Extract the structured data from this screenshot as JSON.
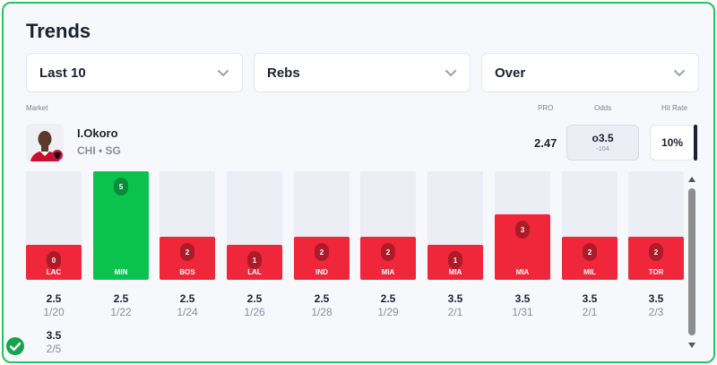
{
  "header": {
    "title": "Trends"
  },
  "filters": [
    {
      "value": "Last 10"
    },
    {
      "value": "Rebs"
    },
    {
      "value": "Over"
    }
  ],
  "columns": {
    "market": "Market",
    "pro": "PRO",
    "odds": "Odds",
    "hit_rate": "Hit Rate"
  },
  "player": {
    "name": "I.Okoro",
    "team_pos": "CHI • SG",
    "pro": "2.47",
    "odds_line": "o3.5",
    "odds_price": "-104",
    "hit_rate": "10%"
  },
  "games": [
    {
      "value": "0",
      "opp": "LAC",
      "line": "2.5",
      "date": "1/20",
      "hit": false
    },
    {
      "value": "5",
      "opp": "MIN",
      "line": "2.5",
      "date": "1/22",
      "hit": true
    },
    {
      "value": "2",
      "opp": "BOS",
      "line": "2.5",
      "date": "1/24",
      "hit": false
    },
    {
      "value": "1",
      "opp": "LAL",
      "line": "2.5",
      "date": "1/26",
      "hit": false
    },
    {
      "value": "2",
      "opp": "IND",
      "line": "2.5",
      "date": "1/28",
      "hit": false
    },
    {
      "value": "2",
      "opp": "MIA",
      "line": "2.5",
      "date": "1/29",
      "hit": false
    },
    {
      "value": "1",
      "opp": "MIA",
      "line": "3.5",
      "date": "2/1",
      "hit": false
    },
    {
      "value": "3",
      "opp": "MIA",
      "line": "3.5",
      "date": "1/31",
      "hit": false
    },
    {
      "value": "2",
      "opp": "MIL",
      "line": "3.5",
      "date": "2/1",
      "hit": false
    },
    {
      "value": "2",
      "opp": "TOR",
      "line": "3.5",
      "date": "2/3",
      "hit": false
    }
  ],
  "overflow_label": {
    "line": "3.5",
    "date": "2/5"
  },
  "colors": {
    "hit": "#0ac24e",
    "miss": "#f0263a",
    "border": "#22c55e"
  },
  "icons": {
    "dropdown": "chevron-down-icon",
    "check": "check-circle-icon",
    "logo": "bulls-logo-icon"
  }
}
